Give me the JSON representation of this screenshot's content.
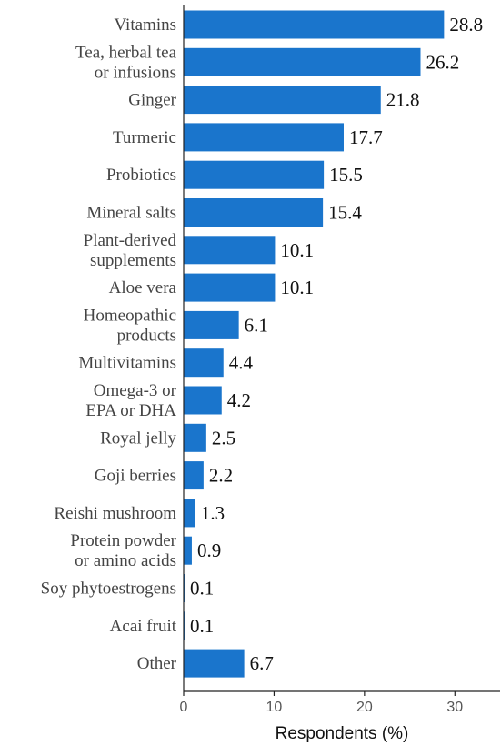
{
  "chart_data": {
    "type": "bar",
    "orientation": "horizontal",
    "title": "",
    "xlabel": "Respondents (%)",
    "ylabel": "",
    "xlim": [
      0,
      35
    ],
    "xticks": [
      "0",
      "10",
      "20",
      "30"
    ],
    "grid": false,
    "bar_color": "#1a75cc",
    "categories": [
      [
        "Vitamins"
      ],
      [
        "Tea, herbal tea",
        "or infusions"
      ],
      [
        "Ginger"
      ],
      [
        "Turmeric"
      ],
      [
        "Probiotics"
      ],
      [
        "Mineral salts"
      ],
      [
        "Plant-derived",
        "supplements"
      ],
      [
        "Aloe vera"
      ],
      [
        "Homeopathic",
        "products"
      ],
      [
        "Multivitamins"
      ],
      [
        "Omega-3 or",
        "EPA or DHA"
      ],
      [
        "Royal jelly"
      ],
      [
        "Goji berries"
      ],
      [
        "Reishi mushroom"
      ],
      [
        "Protein powder",
        "or amino acids"
      ],
      [
        "Soy phytoestrogens"
      ],
      [
        "Acai fruit"
      ],
      [
        "Other"
      ]
    ],
    "values": [
      28.8,
      26.2,
      21.8,
      17.7,
      15.5,
      15.4,
      10.1,
      10.1,
      6.1,
      4.4,
      4.2,
      2.5,
      2.2,
      1.3,
      0.9,
      0.1,
      0.1,
      6.7
    ],
    "value_labels": [
      "28.8",
      "26.2",
      "21.8",
      "17.7",
      "15.5",
      "15.4",
      "10.1",
      "10.1",
      "6.1",
      "4.4",
      "4.2",
      "2.5",
      "2.2",
      "1.3",
      "0.9",
      "0.1",
      "0.1",
      "6.7"
    ]
  }
}
